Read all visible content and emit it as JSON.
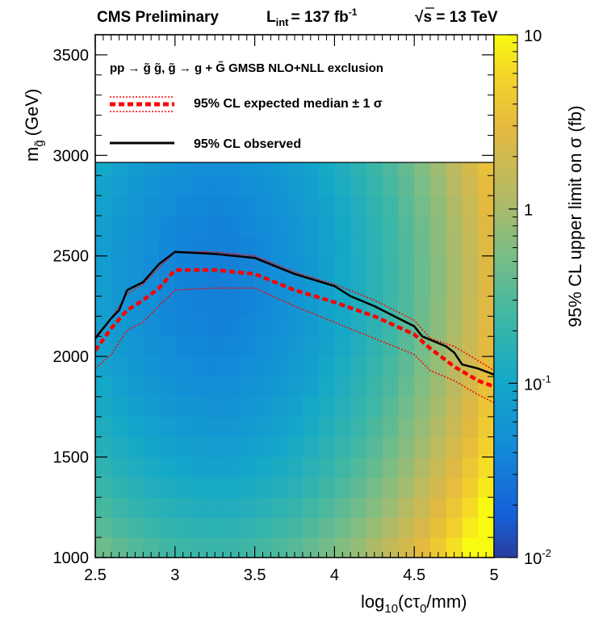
{
  "header": {
    "experiment": "CMS Preliminary",
    "lumi_symbol": "L",
    "lumi_sub": "int",
    "lumi_value": "= 137 fb",
    "lumi_unit_exp": "-1",
    "sqrt_symbol": "√",
    "energy_text": "s = 13 TeV"
  },
  "axes": {
    "y_label_main": "m",
    "y_label_sub": "g̃",
    "y_label_unit": "(GeV)",
    "x_label_prefix": "log",
    "x_label_sub": "10",
    "x_label_arg": "(cτ",
    "x_label_arg_sub": "0",
    "x_label_end": "/mm)",
    "z_label": "95% CL upper limit on σ (fb)"
  },
  "legend": {
    "header": "pp → g̃ g̃, g̃ → g + G̃  GMSB NLO+NLL exclusion",
    "expected": "95% CL expected median ± 1 σ",
    "observed": "95% CL observed"
  },
  "colors": {
    "observed": "#000000",
    "expected": "#ff0000"
  },
  "chart_data": {
    "type": "heatmap",
    "xlim": [
      2.5,
      5.0
    ],
    "ylim": [
      1000,
      3600
    ],
    "zlim": [
      0.01,
      10
    ],
    "z_scale": "log",
    "xticks": [
      2.5,
      3,
      3.5,
      4,
      4.5,
      5
    ],
    "xtick_labels": [
      "2.5",
      "3",
      "3.5",
      "4",
      "4.5",
      "5"
    ],
    "yticks": [
      1000,
      1500,
      2000,
      2500,
      3000,
      3500
    ],
    "ytick_labels": [
      "1000",
      "1500",
      "2000",
      "2500",
      "3000",
      "3500"
    ],
    "zticks": [
      0.01,
      0.1,
      1,
      10
    ],
    "ztick_labels": [
      {
        "base": "10",
        "exp": "-2"
      },
      {
        "base": "10",
        "exp": "-1"
      },
      {
        "base": "1",
        "exp": ""
      },
      {
        "base": "10",
        "exp": ""
      }
    ],
    "heatmap_grid": {
      "x_range": [
        2.5,
        5.0
      ],
      "nx": 25,
      "y_range": [
        1000,
        3000
      ],
      "ny": 20
    },
    "series": [
      {
        "name": "observed",
        "x": [
          2.5,
          2.55,
          2.6,
          2.65,
          2.7,
          2.8,
          2.9,
          3.0,
          3.25,
          3.5,
          3.75,
          4.0,
          4.1,
          4.25,
          4.4,
          4.5,
          4.55,
          4.7,
          4.75,
          4.8,
          4.85,
          4.9,
          5.0
        ],
        "y": [
          2090,
          2140,
          2190,
          2230,
          2330,
          2370,
          2460,
          2520,
          2510,
          2490,
          2410,
          2350,
          2300,
          2250,
          2190,
          2150,
          2100,
          2050,
          2020,
          1960,
          1950,
          1940,
          1910
        ]
      },
      {
        "name": "expected median",
        "x": [
          2.5,
          2.6,
          2.7,
          2.8,
          2.9,
          3.0,
          3.25,
          3.5,
          3.75,
          4.0,
          4.25,
          4.5,
          4.6,
          4.75,
          4.9,
          5.0
        ],
        "y": [
          2030,
          2140,
          2230,
          2280,
          2340,
          2430,
          2430,
          2410,
          2330,
          2270,
          2200,
          2110,
          2040,
          1950,
          1880,
          1850
        ]
      },
      {
        "name": "expected +1 sigma",
        "x": [
          2.5,
          2.6,
          2.7,
          2.8,
          2.9,
          3.0,
          3.25,
          3.5,
          3.75,
          4.0,
          4.25,
          4.5,
          4.6,
          4.75,
          4.9,
          5.0
        ],
        "y": [
          2100,
          2190,
          2310,
          2360,
          2440,
          2520,
          2520,
          2500,
          2420,
          2360,
          2280,
          2180,
          2090,
          2050,
          1980,
          1930
        ]
      },
      {
        "name": "expected -1 sigma",
        "x": [
          2.5,
          2.6,
          2.7,
          2.8,
          2.9,
          3.0,
          3.25,
          3.5,
          3.75,
          4.0,
          4.25,
          4.5,
          4.6,
          4.75,
          4.9,
          5.0
        ],
        "y": [
          1940,
          2010,
          2130,
          2170,
          2250,
          2330,
          2340,
          2340,
          2250,
          2170,
          2090,
          2010,
          1930,
          1880,
          1810,
          1770
        ]
      }
    ]
  }
}
